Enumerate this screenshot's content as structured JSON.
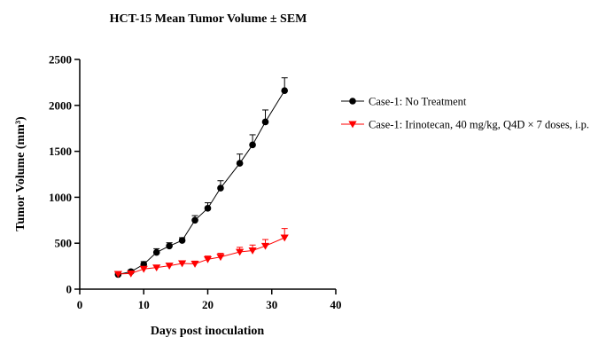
{
  "chart_data": {
    "type": "line",
    "title": "HCT-15 Mean Tumor Volume ± SEM",
    "xlabel": "Days post inoculation",
    "ylabel": "Tumor Volume (mm³)",
    "xlim": [
      0,
      40
    ],
    "ylim": [
      0,
      2500
    ],
    "xticks": [
      0,
      10,
      20,
      30,
      40
    ],
    "yticks": [
      0,
      500,
      1000,
      1500,
      2000,
      2500
    ],
    "grid": false,
    "legend_position": "right",
    "series": [
      {
        "name": "Case-1: No Treatment",
        "color": "#000000",
        "marker": "circle",
        "x": [
          6,
          8,
          10,
          12,
          14,
          16,
          18,
          20,
          22,
          25,
          27,
          29,
          32
        ],
        "y": [
          160,
          190,
          270,
          400,
          470,
          530,
          750,
          880,
          1100,
          1370,
          1570,
          1820,
          2160
        ],
        "err": [
          20,
          20,
          30,
          40,
          35,
          30,
          50,
          60,
          80,
          100,
          110,
          130,
          140
        ]
      },
      {
        "name": "Case-1: Irinotecan, 40 mg/kg, Q4D × 7 doses, i.p.",
        "color": "#ff0000",
        "marker": "triangle-down",
        "x": [
          6,
          8,
          10,
          12,
          14,
          16,
          18,
          20,
          22,
          25,
          27,
          29,
          32
        ],
        "y": [
          165,
          170,
          220,
          235,
          255,
          280,
          275,
          325,
          350,
          405,
          420,
          470,
          560
        ],
        "err": [
          20,
          20,
          25,
          25,
          25,
          25,
          30,
          35,
          40,
          50,
          60,
          70,
          100
        ]
      }
    ]
  }
}
